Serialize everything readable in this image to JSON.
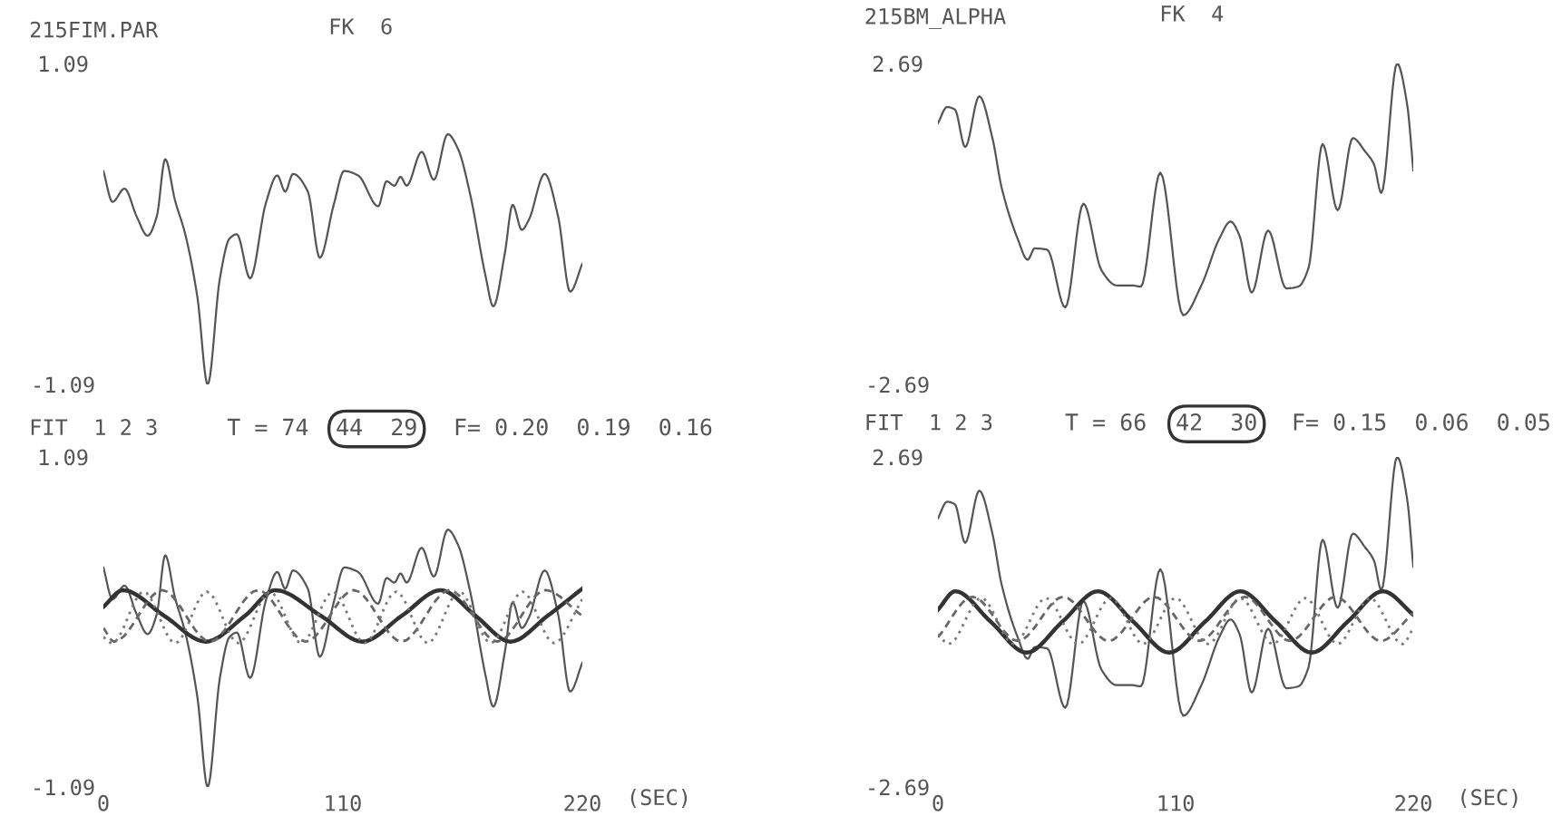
{
  "chart_data": [
    {
      "type": "line",
      "title": "215FIM.PAR",
      "subtitle": "FK  6",
      "xlim": [
        0,
        220
      ],
      "ylim": [
        -1.09,
        1.09
      ],
      "yticks": [
        -1.09,
        1.09
      ],
      "tick_labels": "y",
      "grid": false,
      "legend": false,
      "series": [
        {
          "color": "#555555",
          "line_style": "solid",
          "x": [
            0,
            4.2,
            9.7,
            15.3,
            20.3,
            24.5,
            28.4,
            32.9,
            37.6,
            43.2,
            47.9,
            53.5,
            57.9,
            61.3,
            67.4,
            74.6,
            79.9,
            83.5,
            87.1,
            93.9,
            99.4,
            105.8,
            110.6,
            117,
            126.2,
            130.1,
            133.7,
            136.5,
            139.3,
            146.2,
            151.8,
            158.2,
            162.9,
            168.5,
            175.5,
            179.1,
            184.4,
            188,
            192.2,
            195.5,
            202.7,
            208.9,
            214.4,
            220
          ],
          "values": [
            0.36,
            0.15,
            0.24,
            0.05,
            -0.08,
            0.05,
            0.44,
            0.16,
            -0.07,
            -0.5,
            -1.09,
            -0.37,
            -0.1,
            -0.07,
            -0.37,
            0.14,
            0.33,
            0.22,
            0.34,
            0.22,
            -0.23,
            0.13,
            0.36,
            0.33,
            0.12,
            0.29,
            0.26,
            0.32,
            0.26,
            0.49,
            0.3,
            0.61,
            0.51,
            0.2,
            -0.35,
            -0.56,
            -0.2,
            0.13,
            -0.04,
            0.03,
            0.34,
            0.05,
            -0.46,
            -0.27
          ]
        }
      ]
    },
    {
      "type": "line",
      "title": "215BM_ALPHA",
      "subtitle": "FK  4",
      "xlim": [
        0,
        220
      ],
      "ylim": [
        -2.69,
        2.69
      ],
      "yticks": [
        -2.69,
        2.69
      ],
      "tick_labels": "y",
      "grid": false,
      "legend": false,
      "series": [
        {
          "color": "#555555",
          "line_style": "solid",
          "x": [
            0,
            4.2,
            7.8,
            12.6,
            19.1,
            25.2,
            29.4,
            37,
            41.5,
            44.8,
            50.5,
            58.9,
            67.3,
            75.7,
            82.7,
            89.7,
            93.9,
            102.9,
            113.5,
            121.9,
            130.3,
            135.4,
            139.6,
            145.2,
            152.8,
            161.2,
            166.8,
            171.5,
            178,
            185,
            192,
            197.6,
            201.8,
            205.2,
            212.5,
            217.2,
            220
          ],
          "values": [
            1.69,
            1.96,
            1.92,
            1.29,
            2.14,
            1.44,
            0.62,
            -0.26,
            -0.6,
            -0.41,
            -0.43,
            -1.4,
            0.34,
            -0.78,
            -1.03,
            -1.03,
            -1.05,
            0.86,
            -1.53,
            -1.03,
            -0.24,
            0.04,
            -0.2,
            -1.15,
            -0.11,
            -1.08,
            -1.05,
            -0.74,
            1.34,
            0.23,
            1.44,
            1.22,
            1.0,
            0.52,
            2.69,
            1.99,
            0.9
          ]
        }
      ]
    },
    {
      "type": "line",
      "title": "FIT  1 2 3",
      "annotations": [
        "T = 74",
        "44  29",
        "F= 0.20  0.19  0.16"
      ],
      "xlabel": "(SEC)",
      "xlim": [
        0,
        220
      ],
      "xticks": [
        0,
        110,
        220
      ],
      "ylim": [
        -1.09,
        1.09
      ],
      "yticks": [
        -1.09,
        1.09
      ],
      "grid": false,
      "legend": false,
      "series": [
        {
          "color": "#555555",
          "line_style": "solid",
          "x": [
            0,
            4.2,
            9.7,
            15.3,
            20.3,
            24.5,
            28.4,
            32.9,
            37.6,
            43.2,
            47.9,
            53.5,
            57.9,
            61.3,
            67.4,
            74.6,
            79.9,
            83.5,
            87.1,
            93.9,
            99.4,
            105.8,
            110.6,
            117,
            126.2,
            130.1,
            133.7,
            136.5,
            139.3,
            146.2,
            151.8,
            158.2,
            162.9,
            168.5,
            175.5,
            179.1,
            184.4,
            188,
            192.2,
            195.5,
            202.7,
            208.9,
            214.4,
            220
          ],
          "values": [
            0.36,
            0.15,
            0.24,
            0.05,
            -0.08,
            0.05,
            0.44,
            0.16,
            -0.07,
            -0.5,
            -1.09,
            -0.37,
            -0.1,
            -0.07,
            -0.37,
            0.14,
            0.33,
            0.22,
            0.34,
            0.22,
            -0.23,
            0.13,
            0.36,
            0.33,
            0.12,
            0.29,
            0.26,
            0.32,
            0.26,
            0.49,
            0.3,
            0.61,
            0.51,
            0.2,
            -0.35,
            -0.56,
            -0.2,
            0.13,
            -0.04,
            0.03,
            0.34,
            0.05,
            -0.46,
            -0.27
          ]
        },
        {
          "color": "#333333",
          "line_style": "solid",
          "x": [
            0,
            9,
            28,
            47,
            65,
            79,
            100,
            119,
            137,
            155,
            171,
            187,
            204,
            220
          ],
          "values": [
            0.1,
            0.21,
            0.04,
            -0.13,
            0.04,
            0.21,
            0.04,
            -0.13,
            0.04,
            0.21,
            0.04,
            -0.13,
            0.04,
            0.22
          ]
        },
        {
          "color": "#666666",
          "line_style": "dashed",
          "x": [
            0,
            5,
            27,
            49,
            71,
            93,
            115,
            137,
            159,
            181,
            203,
            220
          ],
          "values": [
            -0.04,
            -0.13,
            0.21,
            -0.13,
            0.21,
            -0.13,
            0.21,
            -0.13,
            0.21,
            -0.13,
            0.21,
            0.04
          ]
        },
        {
          "color": "#777777",
          "line_style": "dotted",
          "x": [
            0,
            4,
            18.5,
            33,
            47.5,
            62,
            76.5,
            91,
            105.5,
            120,
            134.5,
            149,
            163.5,
            178,
            192.5,
            207,
            220
          ],
          "values": [
            -0.1,
            -0.14,
            0.2,
            -0.14,
            0.2,
            -0.14,
            0.2,
            -0.14,
            0.2,
            -0.14,
            0.2,
            -0.14,
            0.2,
            -0.14,
            0.2,
            -0.14,
            0.15
          ]
        }
      ]
    },
    {
      "type": "line",
      "title": "FIT  1 2 3",
      "annotations": [
        "T = 66",
        "42  30",
        "F= 0.15  0.06  0.05"
      ],
      "xlabel": "(SEC)",
      "xlim": [
        0,
        220
      ],
      "xticks": [
        0,
        110,
        220
      ],
      "ylim": [
        -2.69,
        2.69
      ],
      "yticks": [
        -2.69,
        2.69
      ],
      "grid": false,
      "legend": false,
      "series": [
        {
          "color": "#555555",
          "line_style": "solid",
          "x": [
            0,
            4.2,
            7.8,
            12.6,
            19.1,
            25.2,
            29.4,
            37,
            41.5,
            44.8,
            50.5,
            58.9,
            67.3,
            75.7,
            82.7,
            89.7,
            93.9,
            102.9,
            113.5,
            121.9,
            130.3,
            135.4,
            139.6,
            145.2,
            152.8,
            161.2,
            166.8,
            171.5,
            178,
            185,
            192,
            197.6,
            201.8,
            205.2,
            212.5,
            217.2,
            220
          ],
          "values": [
            1.69,
            1.96,
            1.92,
            1.29,
            2.14,
            1.44,
            0.62,
            -0.26,
            -0.6,
            -0.41,
            -0.43,
            -1.4,
            0.34,
            -0.78,
            -1.03,
            -1.03,
            -1.05,
            0.86,
            -1.53,
            -1.03,
            -0.24,
            0.04,
            -0.2,
            -1.15,
            -0.11,
            -1.08,
            -1.05,
            -0.74,
            1.34,
            0.23,
            1.44,
            1.22,
            1.0,
            0.52,
            2.69,
            1.99,
            0.9
          ]
        },
        {
          "color": "#333333",
          "line_style": "solid",
          "x": [
            0,
            8,
            24.5,
            41,
            57.5,
            74,
            90.5,
            107,
            123.5,
            140,
            156.5,
            173,
            189.5,
            206,
            220
          ],
          "values": [
            0.2,
            0.5,
            0.0,
            -0.5,
            0.0,
            0.5,
            0.0,
            -0.5,
            0.0,
            0.5,
            0.0,
            -0.5,
            0.0,
            0.5,
            0.12
          ]
        },
        {
          "color": "#666666",
          "line_style": "dashed",
          "x": [
            0,
            16,
            37,
            58,
            79,
            100,
            121,
            142,
            163,
            184,
            205,
            220
          ],
          "values": [
            -0.25,
            0.41,
            -0.31,
            0.41,
            -0.31,
            0.41,
            -0.31,
            0.41,
            -0.31,
            0.41,
            -0.31,
            0.15
          ]
        },
        {
          "color": "#777777",
          "line_style": "dotted",
          "x": [
            0,
            5,
            20,
            35,
            50,
            65,
            80,
            95,
            110,
            125,
            140,
            155,
            170,
            185,
            200,
            215,
            220
          ],
          "values": [
            -0.2,
            -0.36,
            0.39,
            -0.36,
            0.39,
            -0.36,
            0.39,
            -0.36,
            0.39,
            -0.36,
            0.39,
            -0.36,
            0.39,
            -0.36,
            0.39,
            -0.36,
            -0.1
          ]
        }
      ]
    }
  ]
}
